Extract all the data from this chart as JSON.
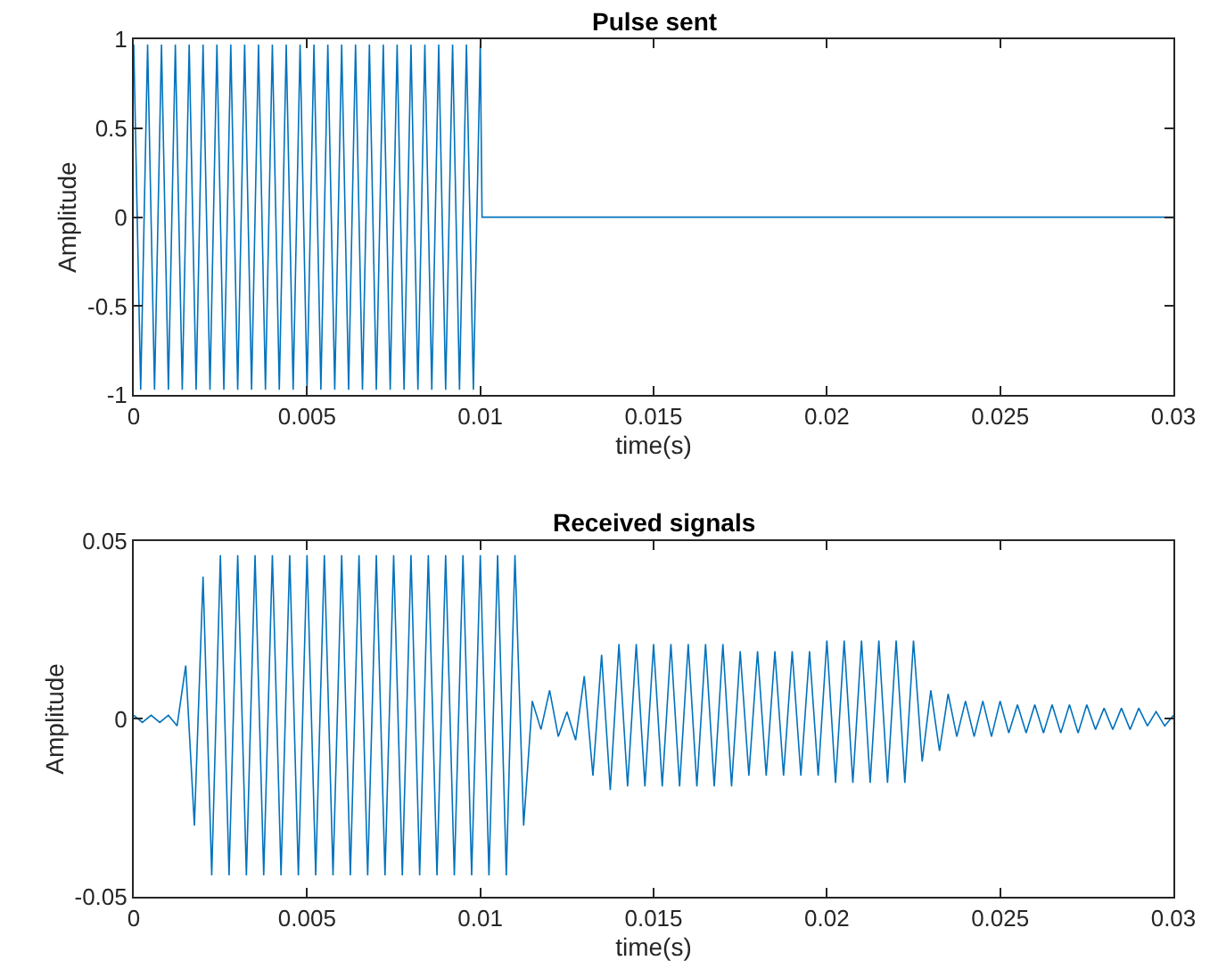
{
  "chart_data": [
    {
      "type": "line",
      "title": "Pulse sent",
      "xlabel": "time(s)",
      "ylabel": "Amplitude",
      "xlim": [
        0,
        0.03
      ],
      "xticks": [
        0,
        0.005,
        0.01,
        0.015,
        0.02,
        0.025,
        0.03
      ],
      "ylim": [
        -1,
        1
      ],
      "yticks": [
        -1,
        -0.5,
        0,
        0.5,
        1
      ],
      "marker": "none",
      "line_style": "solid",
      "series": [
        {
          "color": "#0072bd",
          "x": [
            0,
            0.0002,
            0.0004,
            0.0006,
            0.0008,
            0.001,
            0.0012,
            0.0014,
            0.0016,
            0.0018,
            0.002,
            0.0022,
            0.0024,
            0.0026,
            0.0028,
            0.003,
            0.0032,
            0.0034,
            0.0036,
            0.0038,
            0.004,
            0.0042,
            0.0044,
            0.0046,
            0.0048,
            0.005,
            0.0052,
            0.0054,
            0.0056,
            0.0058,
            0.006,
            0.0062,
            0.0064,
            0.0066,
            0.0068,
            0.007,
            0.0072,
            0.0074,
            0.0076,
            0.0078,
            0.008,
            0.0082,
            0.0084,
            0.0086,
            0.0088,
            0.009,
            0.0092,
            0.0094,
            0.0096,
            0.0098,
            0.01,
            0.01005,
            0.03
          ],
          "values": [
            0.97,
            -0.97,
            0.97,
            -0.97,
            0.97,
            -0.97,
            0.97,
            -0.97,
            0.97,
            -0.97,
            0.97,
            -0.97,
            0.97,
            -0.97,
            0.97,
            -0.97,
            0.97,
            -0.97,
            0.97,
            -0.97,
            0.97,
            -0.97,
            0.97,
            -0.97,
            0.97,
            -0.97,
            0.97,
            -0.97,
            0.97,
            -0.97,
            0.97,
            -0.97,
            0.97,
            -0.97,
            0.97,
            -0.97,
            0.97,
            -0.97,
            0.97,
            -0.97,
            0.97,
            -0.97,
            0.97,
            -0.97,
            0.97,
            -0.97,
            0.97,
            -0.97,
            0.97,
            -0.97,
            0.97,
            0,
            0
          ]
        }
      ]
    },
    {
      "type": "line",
      "title": "Received signals",
      "xlabel": "time(s)",
      "ylabel": "Amplitude",
      "xlim": [
        0,
        0.03
      ],
      "xticks": [
        0,
        0.005,
        0.01,
        0.015,
        0.02,
        0.025,
        0.03
      ],
      "ylim": [
        -0.05,
        0.05
      ],
      "yticks": [
        -0.05,
        0,
        0.05
      ],
      "marker": "none",
      "line_style": "solid",
      "series": [
        {
          "color": "#0072bd",
          "x": [
            0,
            0.00025,
            0.0005,
            0.00075,
            0.001,
            0.00125,
            0.0015,
            0.00175,
            0.002,
            0.00225,
            0.0025,
            0.00275,
            0.003,
            0.00325,
            0.0035,
            0.00375,
            0.004,
            0.00425,
            0.0045,
            0.00475,
            0.005,
            0.00525,
            0.0055,
            0.00575,
            0.006,
            0.00625,
            0.0065,
            0.00675,
            0.007,
            0.00725,
            0.0075,
            0.00775,
            0.008,
            0.00825,
            0.0085,
            0.00875,
            0.009,
            0.00925,
            0.0095,
            0.00975,
            0.01,
            0.01025,
            0.0105,
            0.01075,
            0.011,
            0.01125,
            0.0115,
            0.01175,
            0.012,
            0.01225,
            0.0125,
            0.01275,
            0.013,
            0.01325,
            0.0135,
            0.01375,
            0.014,
            0.01425,
            0.0145,
            0.01475,
            0.015,
            0.01525,
            0.0155,
            0.01575,
            0.016,
            0.01625,
            0.0165,
            0.01675,
            0.017,
            0.01725,
            0.0175,
            0.01775,
            0.018,
            0.01825,
            0.0185,
            0.01875,
            0.019,
            0.01925,
            0.0195,
            0.01975,
            0.02,
            0.02025,
            0.0205,
            0.02075,
            0.021,
            0.02125,
            0.0215,
            0.02175,
            0.022,
            0.02225,
            0.0225,
            0.02275,
            0.023,
            0.02325,
            0.0235,
            0.02375,
            0.024,
            0.02425,
            0.0245,
            0.02475,
            0.025,
            0.02525,
            0.0255,
            0.02575,
            0.026,
            0.02625,
            0.0265,
            0.02675,
            0.027,
            0.02725,
            0.0275,
            0.02775,
            0.028,
            0.02825,
            0.0285,
            0.02875,
            0.029,
            0.02925,
            0.0295,
            0.02975,
            0.03
          ],
          "values": [
            0.001,
            -0.001,
            0.001,
            -0.001,
            0.001,
            -0.002,
            0.015,
            -0.03,
            0.04,
            -0.044,
            0.046,
            -0.044,
            0.046,
            -0.044,
            0.046,
            -0.044,
            0.046,
            -0.044,
            0.046,
            -0.044,
            0.046,
            -0.044,
            0.046,
            -0.044,
            0.046,
            -0.044,
            0.046,
            -0.044,
            0.046,
            -0.044,
            0.046,
            -0.044,
            0.046,
            -0.044,
            0.046,
            -0.044,
            0.046,
            -0.044,
            0.046,
            -0.044,
            0.046,
            -0.044,
            0.046,
            -0.044,
            0.046,
            -0.03,
            0.005,
            -0.003,
            0.008,
            -0.005,
            0.002,
            -0.006,
            0.012,
            -0.016,
            0.018,
            -0.02,
            0.021,
            -0.019,
            0.021,
            -0.019,
            0.021,
            -0.019,
            0.021,
            -0.019,
            0.021,
            -0.019,
            0.021,
            -0.019,
            0.021,
            -0.019,
            0.019,
            -0.016,
            0.019,
            -0.016,
            0.019,
            -0.016,
            0.019,
            -0.016,
            0.019,
            -0.016,
            0.022,
            -0.018,
            0.022,
            -0.018,
            0.022,
            -0.018,
            0.022,
            -0.018,
            0.022,
            -0.018,
            0.022,
            -0.012,
            0.008,
            -0.009,
            0.007,
            -0.005,
            0.005,
            -0.005,
            0.005,
            -0.005,
            0.005,
            -0.004,
            0.004,
            -0.004,
            0.004,
            -0.004,
            0.004,
            -0.004,
            0.004,
            -0.004,
            0.004,
            -0.003,
            0.003,
            -0.003,
            0.003,
            -0.003,
            0.003,
            -0.002,
            0.002,
            -0.002,
            0.001
          ]
        }
      ]
    }
  ]
}
